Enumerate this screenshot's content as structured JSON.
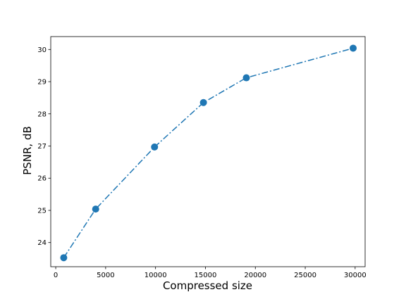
{
  "chart_data": {
    "type": "line",
    "title": "",
    "xlabel": "Compressed size",
    "ylabel": "PSNR, dB",
    "xlim": [
      -500,
      31000
    ],
    "ylim": [
      23.25,
      30.4
    ],
    "xticks": [
      0,
      5000,
      10000,
      15000,
      20000,
      25000,
      30000
    ],
    "yticks": [
      24,
      25,
      26,
      27,
      28,
      29,
      30
    ],
    "grid": false,
    "legend": "none",
    "series": [
      {
        "x": [
          800,
          4000,
          9900,
          14800,
          19100,
          29800
        ],
        "y": [
          23.53,
          25.04,
          26.97,
          28.35,
          29.12,
          30.04
        ],
        "color": "#1f77b4",
        "line_style": "dash-dot",
        "marker": "circle"
      }
    ]
  }
}
